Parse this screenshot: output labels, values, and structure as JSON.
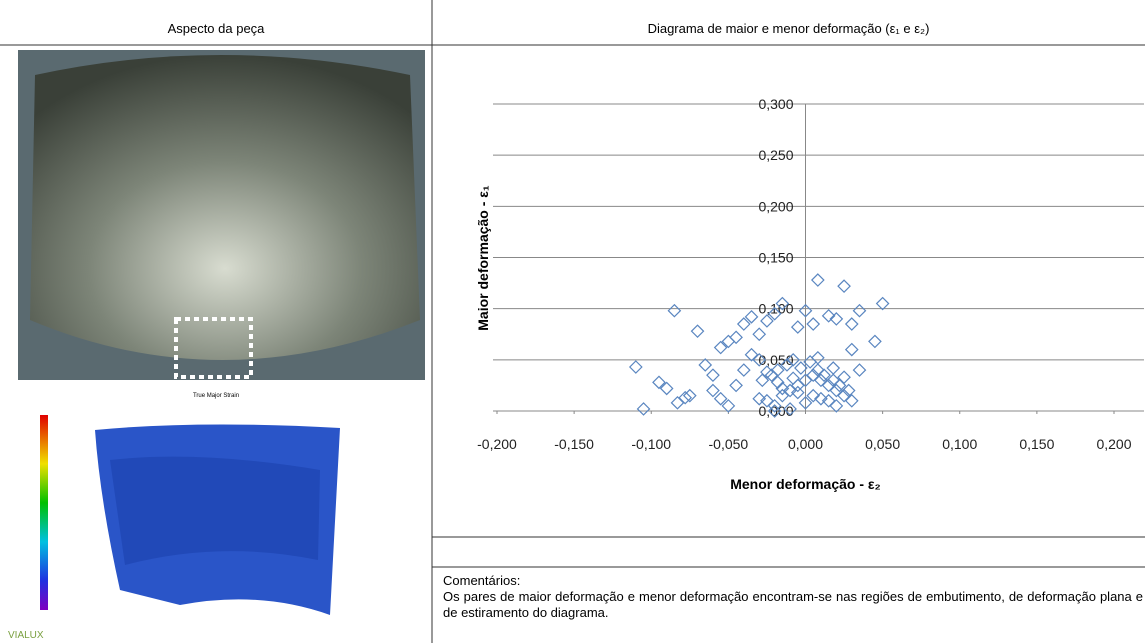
{
  "left_header": "Aspecto da peça",
  "right_header": "Diagrama de maior e menor deformação (ε₁ e ε₂)",
  "strain_map": {
    "title": "True Major Strain",
    "logo": "VIALUX"
  },
  "comments": {
    "label": "Comentários:",
    "text": "Os pares de maior deformação e menor deformação encontram-se nas regiões de embutimento, de deformação plana e de estiramento do diagrama."
  },
  "chart_data": {
    "type": "scatter",
    "ylabel": "Maior deformação - ε₁",
    "xlabel": "Menor deformação - ε₂",
    "color": "#5a86c0",
    "xlim": [
      -0.2,
      0.2
    ],
    "ylim": [
      0,
      0.3
    ],
    "xticks": [
      {
        "value": -0.2,
        "label": "-0,200"
      },
      {
        "value": -0.15,
        "label": "-0,150"
      },
      {
        "value": -0.1,
        "label": "-0,100"
      },
      {
        "value": -0.05,
        "label": "-0,050"
      },
      {
        "value": 0,
        "label": "0,000"
      },
      {
        "value": 0.05,
        "label": "0,050"
      },
      {
        "value": 0.1,
        "label": "0,100"
      },
      {
        "value": 0.15,
        "label": "0,150"
      },
      {
        "value": 0.2,
        "label": "0,200"
      }
    ],
    "yticks": [
      {
        "value": 0,
        "label": "0,000"
      },
      {
        "value": 0.05,
        "label": "0,050"
      },
      {
        "value": 0.1,
        "label": "0,100"
      },
      {
        "value": 0.15,
        "label": "0,150"
      },
      {
        "value": 0.2,
        "label": "0,200"
      },
      {
        "value": 0.25,
        "label": "0,250"
      },
      {
        "value": 0.3,
        "label": "0,300"
      }
    ],
    "grid": true,
    "x": [
      -0.11,
      -0.105,
      -0.085,
      -0.078,
      -0.083,
      -0.075,
      -0.09,
      -0.095,
      -0.07,
      -0.065,
      -0.06,
      -0.055,
      -0.05,
      -0.045,
      -0.04,
      -0.035,
      -0.03,
      -0.025,
      -0.02,
      -0.015,
      -0.005,
      0.0,
      0.005,
      0.008,
      0.015,
      0.02,
      0.025,
      0.03,
      0.035,
      0.045,
      0.05,
      0.03,
      0.035,
      -0.055,
      -0.06,
      -0.05,
      -0.045,
      -0.04,
      -0.035,
      -0.03,
      -0.025,
      -0.02,
      -0.015,
      -0.01,
      -0.005,
      0.0,
      0.005,
      0.01,
      0.015,
      0.02,
      0.025,
      -0.028,
      -0.022,
      -0.018,
      -0.012,
      -0.008,
      -0.003,
      0.003,
      0.008,
      0.012,
      0.018,
      0.022,
      0.028,
      -0.02,
      -0.01,
      0.0,
      0.01,
      0.02,
      -0.015,
      -0.005,
      0.005,
      0.015,
      -0.025,
      0.025,
      -0.03,
      0.03,
      -0.018,
      0.018,
      -0.008,
      0.008
    ],
    "values": [
      0.043,
      0.002,
      0.098,
      0.013,
      0.008,
      0.015,
      0.022,
      0.028,
      0.078,
      0.045,
      0.035,
      0.062,
      0.068,
      0.072,
      0.085,
      0.092,
      0.075,
      0.088,
      0.095,
      0.105,
      0.082,
      0.098,
      0.085,
      0.128,
      0.093,
      0.09,
      0.122,
      0.085,
      0.098,
      0.068,
      0.105,
      0.06,
      0.04,
      0.012,
      0.02,
      0.005,
      0.025,
      0.04,
      0.055,
      0.05,
      0.01,
      0.005,
      0.015,
      0.02,
      0.025,
      0.03,
      0.035,
      0.03,
      0.025,
      0.02,
      0.015,
      0.03,
      0.035,
      0.04,
      0.045,
      0.05,
      0.042,
      0.048,
      0.04,
      0.035,
      0.03,
      0.025,
      0.02,
      0.0,
      0.002,
      0.008,
      0.012,
      0.005,
      0.022,
      0.018,
      0.015,
      0.01,
      0.038,
      0.033,
      0.012,
      0.01,
      0.028,
      0.042,
      0.032,
      0.052
    ]
  }
}
